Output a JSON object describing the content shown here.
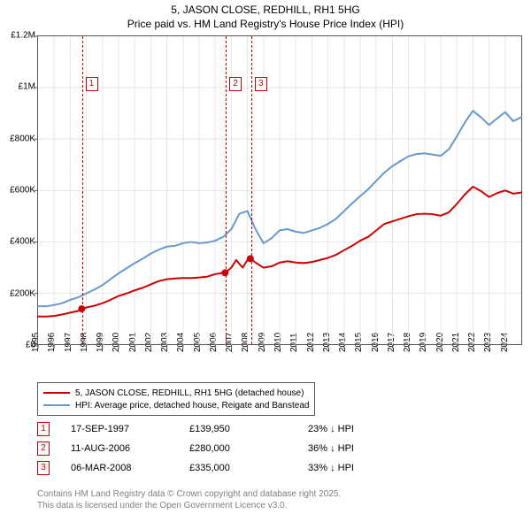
{
  "title": "5, JASON CLOSE, REDHILL, RH1 5HG",
  "subtitle": "Price paid vs. HM Land Registry's House Price Index (HPI)",
  "chart": {
    "type": "line",
    "xlim": [
      1995,
      2025
    ],
    "ylim": [
      0,
      1200000
    ],
    "y_ticks": [
      0,
      200000,
      400000,
      600000,
      800000,
      1000000,
      1200000
    ],
    "y_tick_labels": [
      "£0",
      "£200K",
      "£400K",
      "£600K",
      "£800K",
      "£1M",
      "£1.2M"
    ],
    "x_ticks": [
      1995,
      1996,
      1997,
      1998,
      1999,
      2000,
      2001,
      2002,
      2003,
      2004,
      2005,
      2006,
      2007,
      2008,
      2009,
      2010,
      2011,
      2012,
      2013,
      2014,
      2015,
      2016,
      2017,
      2018,
      2019,
      2020,
      2021,
      2022,
      2023,
      2024
    ],
    "x_tick_labels": [
      "1995",
      "1996",
      "1997",
      "1998",
      "1999",
      "2000",
      "2001",
      "2002",
      "2003",
      "2004",
      "2005",
      "2006",
      "2007",
      "2008",
      "2009",
      "2010",
      "2011",
      "2012",
      "2013",
      "2014",
      "2015",
      "2016",
      "2017",
      "2018",
      "2019",
      "2020",
      "2021",
      "2022",
      "2023",
      "2024"
    ],
    "grid_color": "#e6e6e6",
    "border_color": "#555555",
    "background_color": "#ffffff",
    "label_fontsize": 10,
    "series": [
      {
        "name": "property",
        "label": "5, JASON CLOSE, REDHILL, RH1 5HG (detached house)",
        "color": "#cc0000",
        "width": 2,
        "markers": {
          "x": [
            1997.71,
            2006.61,
            2008.18
          ],
          "y": [
            139950,
            280000,
            335000
          ],
          "size": 4
        },
        "x": [
          1995,
          1995.5,
          1996,
          1996.5,
          1997,
          1997.5,
          1997.71,
          1998,
          1998.5,
          1999,
          1999.5,
          2000,
          2000.5,
          2001,
          2001.5,
          2002,
          2002.5,
          2003,
          2003.5,
          2004,
          2004.5,
          2005,
          2005.5,
          2006,
          2006.5,
          2006.61,
          2007,
          2007.3,
          2007.7,
          2008,
          2008.18,
          2008.5,
          2009,
          2009.5,
          2010,
          2010.5,
          2011,
          2011.5,
          2012,
          2012.5,
          2013,
          2013.5,
          2014,
          2014.5,
          2015,
          2015.5,
          2016,
          2016.5,
          2017,
          2017.5,
          2018,
          2018.5,
          2019,
          2019.5,
          2020,
          2020.5,
          2021,
          2021.5,
          2022,
          2022.5,
          2023,
          2023.5,
          2024,
          2024.5,
          2025
        ],
        "y": [
          110000,
          110000,
          112000,
          118000,
          125000,
          132000,
          139950,
          145000,
          152000,
          162000,
          175000,
          190000,
          200000,
          212000,
          222000,
          235000,
          248000,
          255000,
          258000,
          260000,
          260000,
          262000,
          265000,
          275000,
          280000,
          280000,
          300000,
          330000,
          300000,
          330000,
          335000,
          320000,
          300000,
          305000,
          320000,
          325000,
          320000,
          318000,
          322000,
          330000,
          338000,
          350000,
          368000,
          385000,
          405000,
          420000,
          445000,
          470000,
          480000,
          490000,
          500000,
          508000,
          510000,
          508000,
          502000,
          515000,
          548000,
          585000,
          615000,
          598000,
          575000,
          590000,
          600000,
          588000,
          592000
        ]
      },
      {
        "name": "hpi",
        "label": "HPI: Average price, detached house, Reigate and Banstead",
        "color": "#6699cc",
        "width": 2,
        "x": [
          1995,
          1995.5,
          1996,
          1996.5,
          1997,
          1997.5,
          1998,
          1998.5,
          1999,
          1999.5,
          2000,
          2000.5,
          2001,
          2001.5,
          2002,
          2002.5,
          2003,
          2003.5,
          2004,
          2004.5,
          2005,
          2005.5,
          2006,
          2006.5,
          2007,
          2007.5,
          2008,
          2008.5,
          2009,
          2009.5,
          2010,
          2010.5,
          2011,
          2011.5,
          2012,
          2012.5,
          2013,
          2013.5,
          2014,
          2014.5,
          2015,
          2015.5,
          2016,
          2016.5,
          2017,
          2017.5,
          2018,
          2018.5,
          2019,
          2019.5,
          2020,
          2020.5,
          2021,
          2021.5,
          2022,
          2022.5,
          2023,
          2023.5,
          2024,
          2024.5,
          2025
        ],
        "y": [
          150000,
          150000,
          155000,
          162000,
          175000,
          185000,
          200000,
          215000,
          232000,
          255000,
          278000,
          298000,
          318000,
          335000,
          355000,
          370000,
          382000,
          385000,
          395000,
          400000,
          395000,
          398000,
          405000,
          420000,
          450000,
          510000,
          520000,
          450000,
          395000,
          415000,
          445000,
          450000,
          440000,
          435000,
          445000,
          455000,
          470000,
          490000,
          520000,
          550000,
          578000,
          605000,
          638000,
          670000,
          695000,
          715000,
          733000,
          742000,
          745000,
          740000,
          735000,
          760000,
          810000,
          865000,
          910000,
          885000,
          855000,
          880000,
          905000,
          870000,
          885000
        ]
      }
    ],
    "event_lines": [
      {
        "n": "1",
        "x": 1997.71
      },
      {
        "n": "2",
        "x": 2006.61
      },
      {
        "n": "3",
        "x": 2008.18
      }
    ]
  },
  "legend": {
    "items": [
      {
        "color": "#cc0000",
        "width": 2,
        "label": "5, JASON CLOSE, REDHILL, RH1 5HG (detached house)"
      },
      {
        "color": "#6699cc",
        "width": 2,
        "label": "HPI: Average price, detached house, Reigate and Banstead"
      }
    ]
  },
  "events_table": [
    {
      "n": "1",
      "date": "17-SEP-1997",
      "price": "£139,950",
      "diff": "23% ↓ HPI"
    },
    {
      "n": "2",
      "date": "11-AUG-2006",
      "price": "£280,000",
      "diff": "36% ↓ HPI"
    },
    {
      "n": "3",
      "date": "06-MAR-2008",
      "price": "£335,000",
      "diff": "33% ↓ HPI"
    }
  ],
  "footer": {
    "line1": "Contains HM Land Registry data © Crown copyright and database right 2025.",
    "line2": "This data is licensed under the Open Government Licence v3.0."
  },
  "colors": {
    "text": "#000000",
    "footer": "#808080",
    "event": "#cc0000"
  }
}
